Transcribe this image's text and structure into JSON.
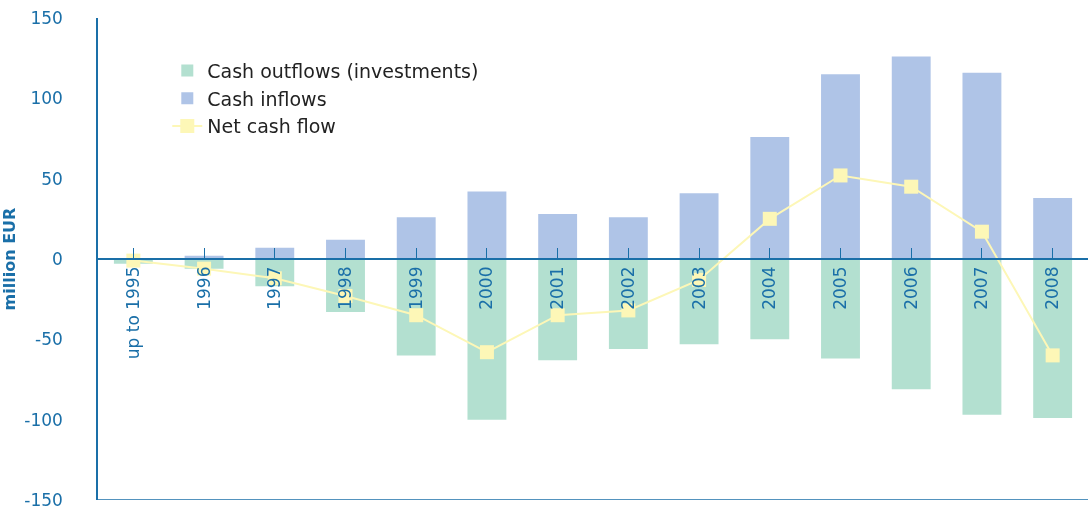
{
  "chart_data": {
    "type": "bar",
    "ylabel": "million EUR",
    "categories": [
      "up to 1995",
      "1996",
      "1997",
      "1998",
      "1999",
      "2000",
      "2001",
      "2002",
      "2003",
      "2004",
      "2005",
      "2006",
      "2007",
      "2008"
    ],
    "series": [
      {
        "name": "Cash outflows (investments)",
        "color": "#b3e0d0",
        "values": [
          -3,
          -6,
          -17,
          -33,
          -60,
          -100,
          -63,
          -56,
          -53,
          -50,
          -62,
          -81,
          -97,
          -99
        ]
      },
      {
        "name": "Cash inflows",
        "color": "#afc4e7",
        "values": [
          0,
          2,
          7,
          12,
          26,
          42,
          28,
          26,
          41,
          76,
          115,
          126,
          116,
          38
        ]
      },
      {
        "name": "Net cash flow",
        "type": "line",
        "color": "#fdf7b7",
        "marker": "square",
        "values": [
          -1,
          -6,
          -12,
          -23,
          -35,
          -58,
          -35,
          -32,
          -13,
          25,
          52,
          45,
          17,
          -60
        ]
      }
    ],
    "stacked": true,
    "ylim": [
      -150,
      150
    ],
    "yticks": [
      -150,
      -100,
      -50,
      0,
      50,
      100,
      150
    ],
    "grid": false,
    "legend": "top left"
  }
}
